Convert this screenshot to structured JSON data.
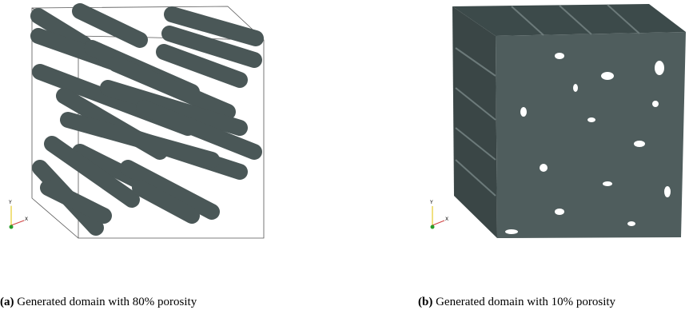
{
  "figures": [
    {
      "label": "(a)",
      "caption": "Generated domain with 80% porosity",
      "axis_labels": [
        "Y",
        "X"
      ]
    },
    {
      "label": "(b)",
      "caption": "Generated domain with 10% porosity",
      "axis_labels": [
        "Y",
        "X"
      ]
    }
  ]
}
